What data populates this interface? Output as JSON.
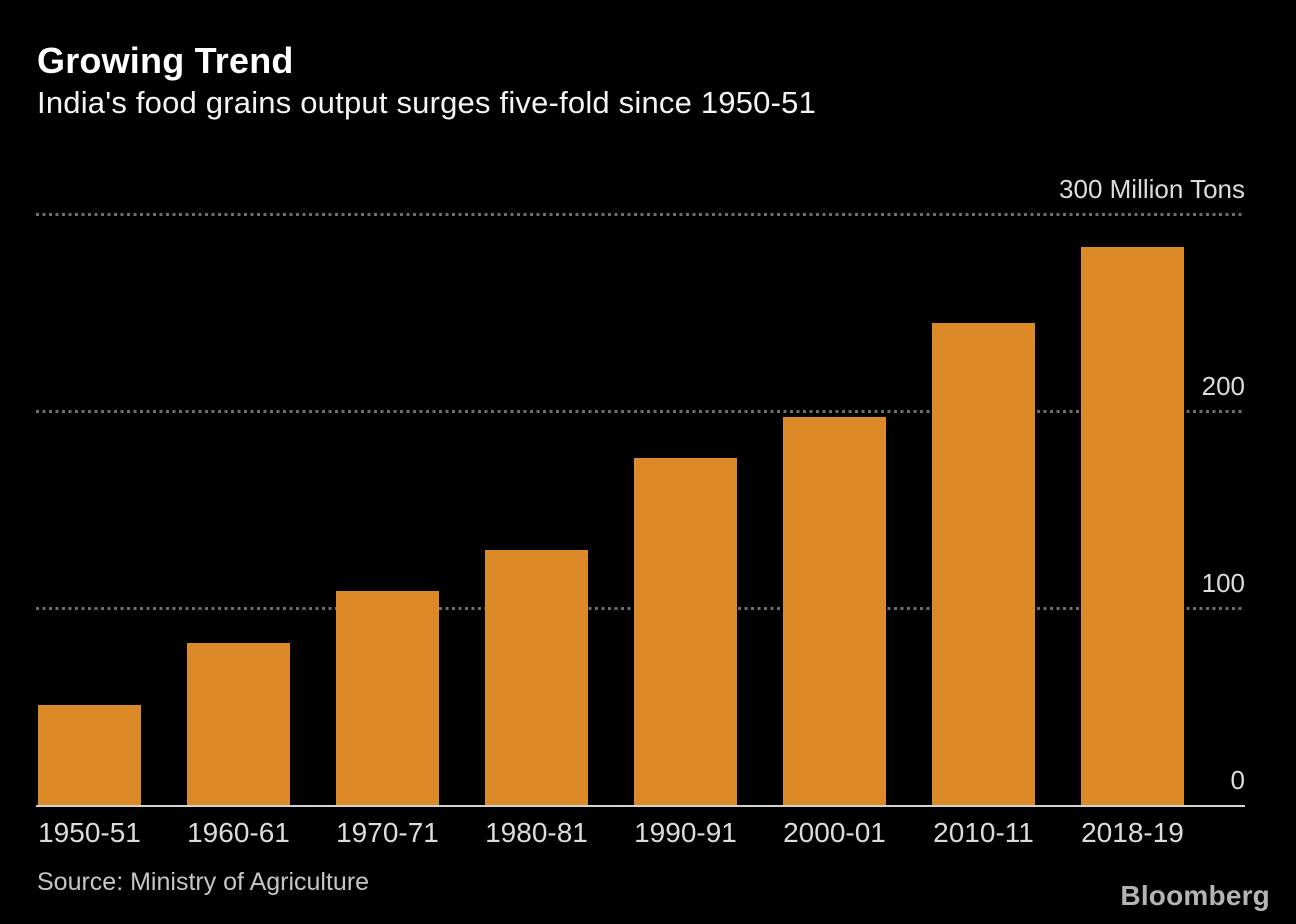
{
  "header": {
    "title": "Growing Trend",
    "subtitle": "India's food grains output surges five-fold since 1950-51"
  },
  "chart_data": {
    "type": "bar",
    "title": "Growing Trend",
    "subtitle": "India's food grains output surges five-fold since 1950-51",
    "categories": [
      "1950-51",
      "1960-61",
      "1970-71",
      "1980-81",
      "1990-91",
      "2000-01",
      "2010-11",
      "2018-19"
    ],
    "values": [
      50.8,
      82.0,
      108.4,
      129.6,
      176.4,
      196.8,
      244.5,
      283.4
    ],
    "unit": "Million Tons",
    "ylim": [
      0,
      300
    ],
    "yticks": [
      0,
      100,
      200,
      300
    ],
    "ytick_labels": [
      "0",
      "100",
      "200",
      "300 Million Tons"
    ],
    "grid": "horizontal-dashed",
    "legend": "none",
    "bar_color": "#dc8a28",
    "background_color": "#000000",
    "gridline_color": "#6e6e6e",
    "axis_line_color": "#d2d2d2",
    "tick_label_color": "#dcdcdc"
  },
  "footer": {
    "source": "Source: Ministry of Agriculture",
    "brand": "Bloomberg"
  }
}
